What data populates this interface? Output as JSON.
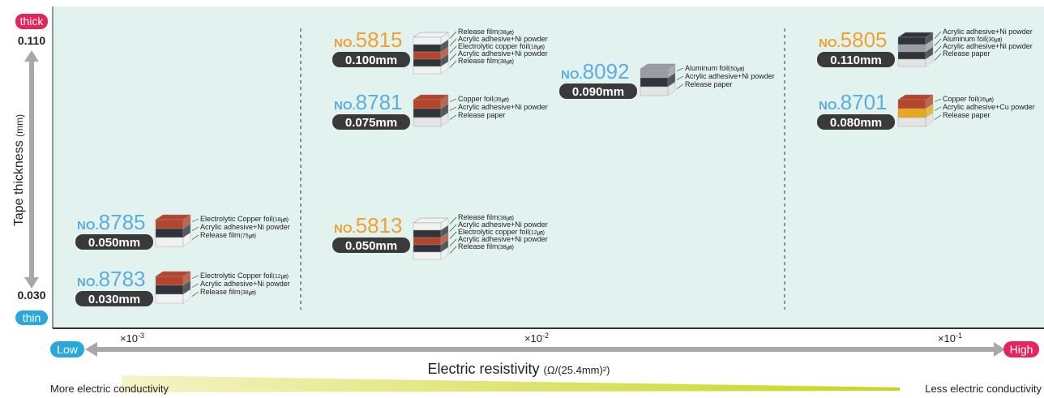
{
  "y_axis": {
    "label": "Tape thickness",
    "unit": "(mm)",
    "top": "thick",
    "bottom": "thin",
    "max": "0.110",
    "min": "0.030"
  },
  "x_axis": {
    "label": "Electric resistivity",
    "unit": "(Ω/(25.4mm)²)",
    "left": "Low",
    "right": "High",
    "left_note": "More electric conductivity",
    "right_note": "Less electric conductivity",
    "scale": [
      {
        "base": "×10",
        "exp": "-3"
      },
      {
        "base": "×10",
        "exp": "-2"
      },
      {
        "base": "×10",
        "exp": "-1"
      }
    ]
  },
  "prefix": "NO.",
  "products": [
    {
      "number": "8785",
      "thickness": "0.050mm",
      "accent": "#5aaee0",
      "layers": [
        {
          "name": "Electrolytic Copper foil",
          "spec": "(18㎛)",
          "color": "#b5452c"
        },
        {
          "name": "Acrylic adhesive+Ni powder",
          "color": "#30343a"
        },
        {
          "name": "Release film",
          "spec": "(75㎛)",
          "color": "#f2f2f2"
        }
      ]
    },
    {
      "number": "8783",
      "thickness": "0.030mm",
      "accent": "#5aaee0",
      "layers": [
        {
          "name": "Electrolytic Copper foil",
          "spec": "(12㎛)",
          "color": "#b5452c"
        },
        {
          "name": "Acrylic adhesive+Ni powder",
          "color": "#30343a"
        },
        {
          "name": "Release film",
          "spec": "(38㎛)",
          "color": "#f2f2f2"
        }
      ]
    },
    {
      "number": "5815",
      "thickness": "0.100mm",
      "accent": "#f0a030",
      "layers": [
        {
          "name": "Release film",
          "spec": "(38㎛)",
          "color": "#f2f2f2"
        },
        {
          "name": "Acrylic adhesive+Ni powder",
          "color": "#30343a"
        },
        {
          "name": "Electrolytic copper foil",
          "spec": "(18㎛)",
          "color": "#b5452c"
        },
        {
          "name": "Acrylic adhesive+Ni powder",
          "color": "#30343a"
        },
        {
          "name": "Release film",
          "spec": "(38㎛)",
          "color": "#f2f2f2"
        }
      ]
    },
    {
      "number": "8781",
      "thickness": "0.075mm",
      "accent": "#5aaee0",
      "layers": [
        {
          "name": "Copper foil",
          "spec": "(35㎛)",
          "color": "#b5452c"
        },
        {
          "name": "Acrylic adhesive+Ni powder",
          "color": "#30343a"
        },
        {
          "name": "Release paper",
          "color": "#e4e4e4"
        }
      ]
    },
    {
      "number": "5813",
      "thickness": "0.050mm",
      "accent": "#f0a030",
      "layers": [
        {
          "name": "Release film",
          "spec": "(38㎛)",
          "color": "#f2f2f2"
        },
        {
          "name": "Acrylic adhesive+Ni powder",
          "color": "#30343a"
        },
        {
          "name": "Electrolytic copper foil",
          "spec": "(12㎛)",
          "color": "#b5452c"
        },
        {
          "name": "Acrylic adhesive+Ni powder",
          "color": "#30343a"
        },
        {
          "name": "Release film",
          "spec": "(38㎛)",
          "color": "#f2f2f2"
        }
      ]
    },
    {
      "number": "8092",
      "thickness": "0.090mm",
      "accent": "#5aaee0",
      "layers": [
        {
          "name": "Aluminum foil",
          "spec": "(50㎛)",
          "color": "#9a9ea3"
        },
        {
          "name": "Acrylic adhesive+Ni powder",
          "color": "#30343a"
        },
        {
          "name": "Release paper",
          "color": "#e4e4e4"
        }
      ]
    },
    {
      "number": "5805",
      "thickness": "0.110mm",
      "accent": "#f0a030",
      "layers": [
        {
          "name": "Acrylic adhesive+Ni powder",
          "color": "#30343a"
        },
        {
          "name": "Aluminum foil",
          "spec": "(30㎛)",
          "color": "#9a9ea3"
        },
        {
          "name": "Acrylic adhesive+Ni powder",
          "color": "#30343a"
        },
        {
          "name": "Release paper",
          "color": "#e4e4e4"
        }
      ]
    },
    {
      "number": "8701",
      "thickness": "0.080mm",
      "accent": "#5aaee0",
      "layers": [
        {
          "name": "Copper foil",
          "spec": "(35㎛)",
          "color": "#b5452c"
        },
        {
          "name": "Acrylic adhesive+Cu powder",
          "color": "#e8a81c"
        },
        {
          "name": "Release paper",
          "color": "#e4e4e4"
        }
      ]
    }
  ]
}
